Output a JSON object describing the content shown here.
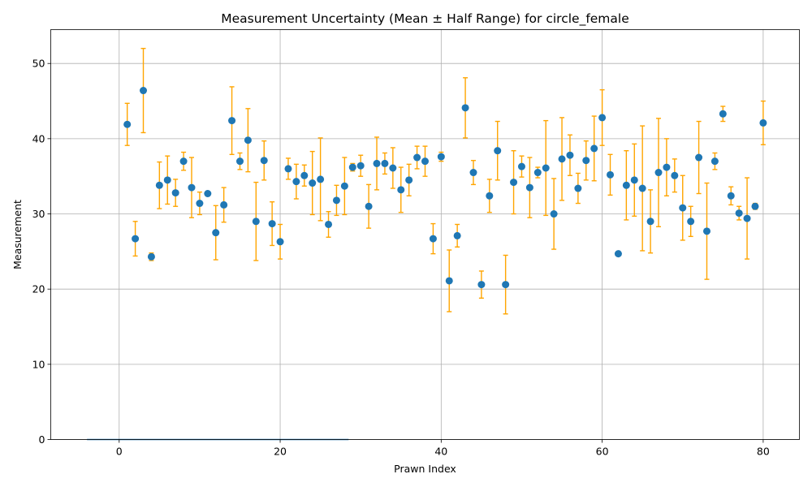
{
  "chart_data": {
    "type": "scatter",
    "title": "Measurement Uncertainty (Mean ± Half Range) for circle_female",
    "xlabel": "Prawn Index",
    "ylabel": "Measurement",
    "xlim": [
      -8.5,
      84.5
    ],
    "ylim": [
      0,
      54.5
    ],
    "xticks": [
      0,
      20,
      40,
      60,
      80
    ],
    "yticks": [
      0,
      10,
      20,
      30,
      40,
      50
    ],
    "grid": true,
    "colors": {
      "points": "#1f77b4",
      "errorbars": "#FFA500",
      "baseline": "#1f77b4"
    },
    "baseline_segment": {
      "x": [
        -4,
        28.5
      ],
      "y": 0
    },
    "x": [
      1,
      2,
      3,
      4,
      5,
      6,
      7,
      8,
      9,
      10,
      11,
      12,
      13,
      14,
      15,
      16,
      17,
      18,
      19,
      20,
      21,
      22,
      23,
      24,
      25,
      26,
      27,
      28,
      29,
      30,
      31,
      32,
      33,
      34,
      35,
      36,
      37,
      38,
      39,
      40,
      41,
      42,
      43,
      44,
      45,
      46,
      47,
      48,
      49,
      50,
      51,
      52,
      53,
      54,
      55,
      56,
      57,
      58,
      59,
      60,
      61,
      62,
      63,
      64,
      65,
      66,
      67,
      68,
      69,
      70,
      71,
      72,
      73,
      74,
      75,
      76,
      77,
      78,
      79,
      80
    ],
    "y": [
      41.9,
      26.7,
      46.4,
      24.3,
      33.8,
      34.5,
      32.8,
      37.0,
      33.5,
      31.4,
      32.7,
      27.5,
      31.2,
      42.4,
      37.0,
      39.8,
      29.0,
      37.1,
      28.7,
      26.3,
      36.0,
      34.3,
      35.1,
      34.1,
      34.6,
      28.6,
      31.8,
      33.7,
      36.2,
      36.4,
      31.0,
      36.7,
      36.7,
      36.1,
      33.2,
      34.5,
      37.5,
      37.0,
      26.7,
      37.6,
      21.1,
      27.1,
      44.1,
      35.5,
      20.6,
      32.4,
      38.4,
      20.6,
      34.2,
      36.3,
      33.5,
      35.5,
      36.1,
      30.0,
      37.3,
      37.8,
      33.4,
      37.1,
      38.7,
      42.8,
      35.2,
      24.7,
      33.8,
      34.5,
      33.4,
      29.0,
      35.5,
      36.2,
      35.1,
      30.8,
      29.0,
      37.5,
      27.7,
      37.0,
      43.3,
      32.4,
      30.1,
      29.4,
      31.0,
      42.1
    ],
    "err": [
      2.8,
      2.3,
      5.6,
      0.5,
      3.1,
      3.2,
      1.8,
      1.2,
      4.0,
      1.5,
      0,
      3.6,
      2.3,
      4.5,
      1.1,
      4.2,
      5.2,
      2.6,
      2.9,
      2.3,
      1.4,
      2.3,
      1.4,
      4.2,
      5.5,
      1.7,
      2.0,
      3.8,
      0.5,
      1.4,
      2.9,
      3.5,
      1.4,
      2.7,
      3.0,
      2.1,
      1.5,
      2.0,
      2.0,
      0.6,
      4.1,
      1.5,
      4.0,
      1.6,
      1.8,
      2.2,
      3.9,
      3.9,
      4.2,
      1.4,
      4.0,
      0.7,
      6.3,
      4.7,
      5.5,
      2.7,
      2.0,
      2.6,
      4.3,
      3.7,
      2.7,
      0,
      4.6,
      4.8,
      8.3,
      4.2,
      7.2,
      3.8,
      2.2,
      4.3,
      2.0,
      4.8,
      6.4,
      1.1,
      1.0,
      1.2,
      0.9,
      5.4,
      0.4,
      2.9
    ]
  }
}
